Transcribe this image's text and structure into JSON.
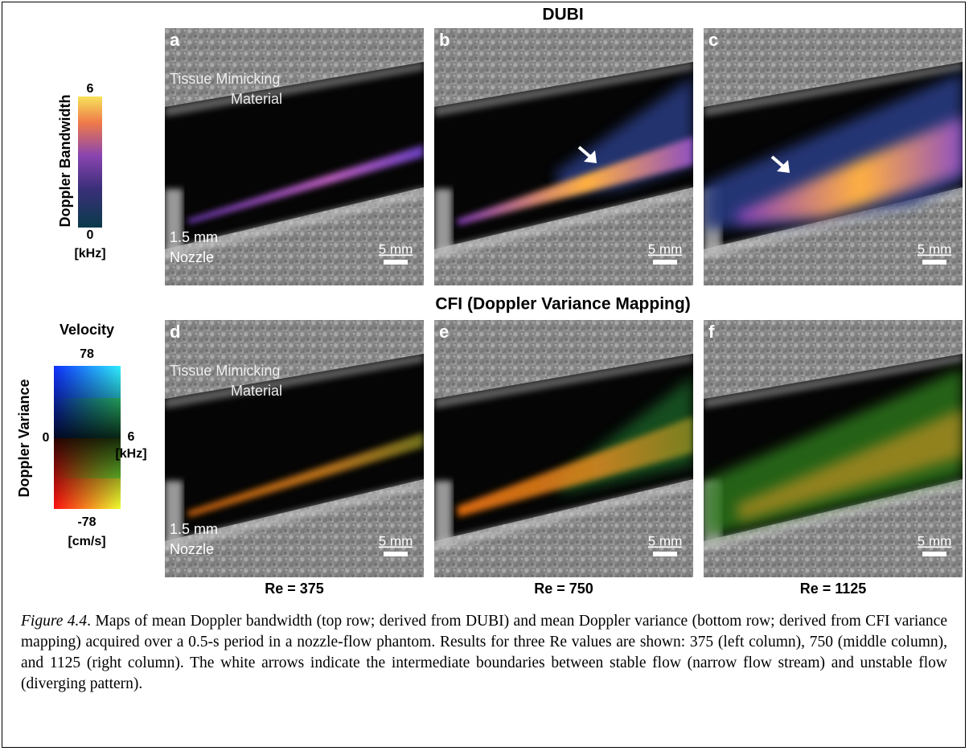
{
  "rows": [
    {
      "title": "DUBI",
      "panels": [
        {
          "letter": "a",
          "top_label": [
            "Tissue Mimicking",
            "Material"
          ],
          "bottom_label": [
            "1.5 mm",
            "Nozzle"
          ],
          "scale_bar": "5 mm"
        },
        {
          "letter": "b",
          "scale_bar": "5 mm"
        },
        {
          "letter": "c",
          "scale_bar": "5 mm"
        }
      ]
    },
    {
      "title": "CFI (Doppler Variance Mapping)",
      "panels": [
        {
          "letter": "d",
          "top_label": [
            "Tissue Mimicking",
            "Material"
          ],
          "bottom_label": [
            "1.5 mm",
            "Nozzle"
          ],
          "scale_bar": "5 mm"
        },
        {
          "letter": "e",
          "scale_bar": "5 mm"
        },
        {
          "letter": "f",
          "scale_bar": "5 mm"
        }
      ]
    }
  ],
  "column_labels": [
    "Re = 375",
    "Re = 750",
    "Re = 1125"
  ],
  "colorbar_bandwidth": {
    "label": "Doppler Bandwidth",
    "max": "6",
    "min": "0",
    "unit": "[kHz]"
  },
  "colorbar_variance": {
    "title": "Velocity",
    "label": "Doppler Variance",
    "top": "78",
    "bottom": "-78",
    "left": "0",
    "right": "6",
    "unit_right": "[kHz]",
    "unit_bottom": "[cm/s]"
  },
  "caption": {
    "label": "Figure 4.4",
    "text": ". Maps of mean Doppler bandwidth (top row; derived from DUBI) and mean Doppler variance (bottom row; derived from CFI variance mapping) acquired over a 0.5-s period in a nozzle-flow phantom. Results for three Re values are shown: 375 (left column), 750 (middle column), and 1125 (right column). The white arrows indicate the intermediate boundaries between stable flow (narrow flow stream) and unstable flow (diverging pattern)."
  }
}
